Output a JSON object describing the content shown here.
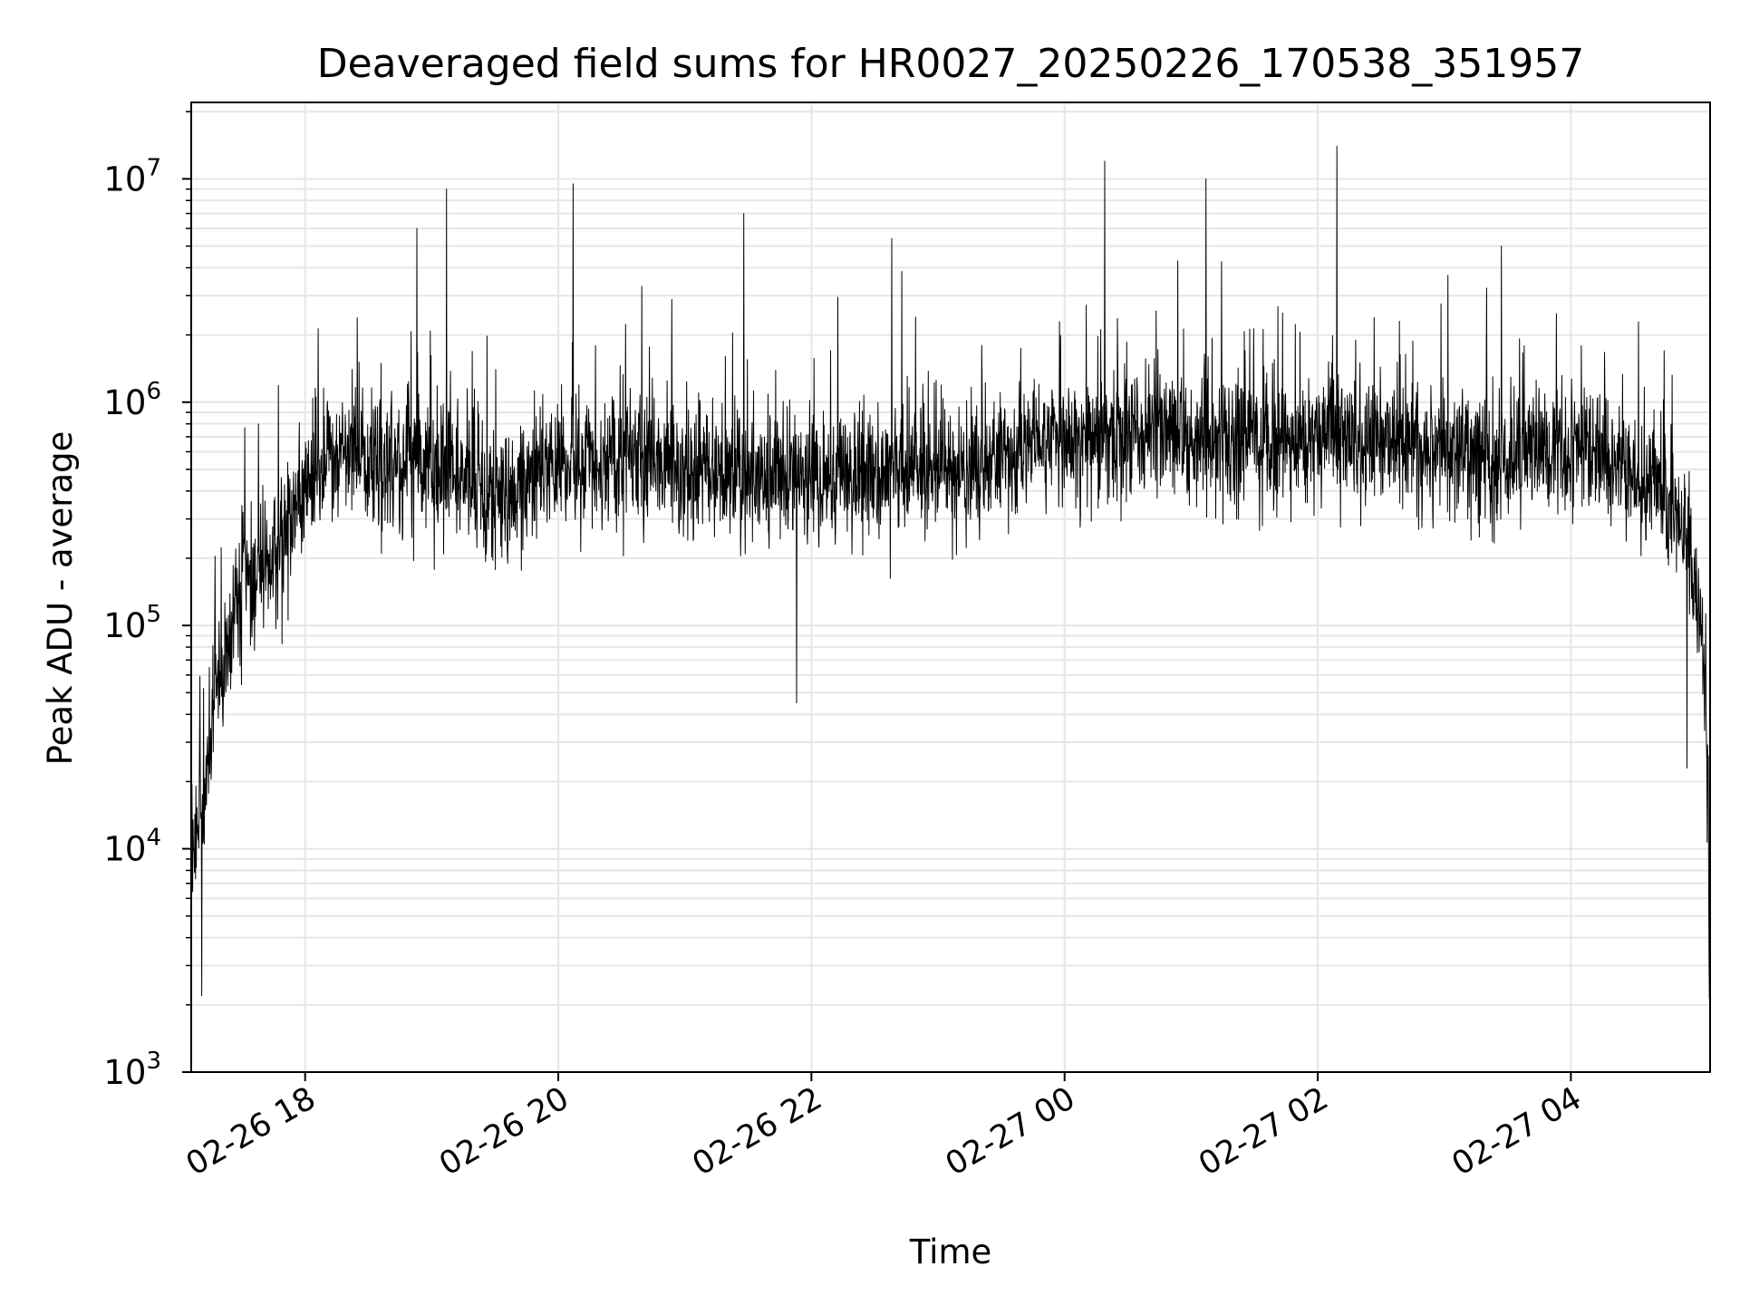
{
  "chart_data": {
    "type": "line",
    "title": "Deaveraged field sums for HR0027_20250226_170538_351957",
    "xlabel": "Time",
    "ylabel": "Peak ADU - average",
    "x_scale": "time",
    "y_scale": "log",
    "xlim": [
      "2025-02-26 17:06",
      "2025-02-27 05:06"
    ],
    "ylim": [
      1000,
      22000000
    ],
    "x_ticks": [
      {
        "value": "2025-02-26 18:00",
        "label": "02-26 18"
      },
      {
        "value": "2025-02-26 20:00",
        "label": "02-26 20"
      },
      {
        "value": "2025-02-26 22:00",
        "label": "02-26 22"
      },
      {
        "value": "2025-02-27 00:00",
        "label": "02-27 00"
      },
      {
        "value": "2025-02-27 02:00",
        "label": "02-27 02"
      },
      {
        "value": "2025-02-27 04:00",
        "label": "02-27 04"
      }
    ],
    "y_ticks": [
      {
        "value": 1000,
        "base": "10",
        "exp": "3"
      },
      {
        "value": 10000,
        "base": "10",
        "exp": "4"
      },
      {
        "value": 100000,
        "base": "10",
        "exp": "5"
      },
      {
        "value": 1000000,
        "base": "10",
        "exp": "6"
      },
      {
        "value": 10000000,
        "base": "10",
        "exp": "7"
      }
    ],
    "grid": true,
    "line_color": "#000000",
    "grid_color": "#e6e6e6",
    "series": [
      {
        "x": [
          "2025-02-26 17:06",
          "2025-02-26 17:12",
          "2025-02-26 17:18",
          "2025-02-26 17:24",
          "2025-02-26 17:30",
          "2025-02-26 17:36",
          "2025-02-26 17:42",
          "2025-02-26 17:48",
          "2025-02-26 17:54",
          "2025-02-26 18:00",
          "2025-02-26 18:15",
          "2025-02-26 18:30",
          "2025-02-26 19:00",
          "2025-02-26 19:30",
          "2025-02-26 20:00",
          "2025-02-26 20:30",
          "2025-02-26 21:00",
          "2025-02-26 21:30",
          "2025-02-26 22:00",
          "2025-02-26 22:30",
          "2025-02-26 23:00",
          "2025-02-26 23:30",
          "2025-02-27 00:00",
          "2025-02-27 00:30",
          "2025-02-27 01:00",
          "2025-02-27 01:30",
          "2025-02-27 02:00",
          "2025-02-27 02:30",
          "2025-02-27 03:00",
          "2025-02-27 03:30",
          "2025-02-27 04:00",
          "2025-02-27 04:20",
          "2025-02-27 04:40",
          "2025-02-27 04:55",
          "2025-02-27 05:02",
          "2025-02-27 05:05",
          "2025-02-27 05:06"
        ],
        "y": [
          10000,
          20000,
          50000,
          90000,
          130000,
          160000,
          200000,
          250000,
          300000,
          420000,
          600000,
          550000,
          500000,
          380000,
          550000,
          560000,
          500000,
          480000,
          450000,
          470000,
          500000,
          550000,
          700000,
          750000,
          700000,
          650000,
          700000,
          650000,
          600000,
          550000,
          600000,
          550000,
          400000,
          250000,
          100000,
          20000,
          1500
        ],
        "peaks": [
          {
            "x": "2025-02-26 18:53",
            "y": 6000000
          },
          {
            "x": "2025-02-26 19:07",
            "y": 9000000
          },
          {
            "x": "2025-02-26 20:07",
            "y": 9500000
          },
          {
            "x": "2025-02-26 21:28",
            "y": 7000000
          },
          {
            "x": "2025-02-26 22:38",
            "y": 5400000
          },
          {
            "x": "2025-02-27 00:19",
            "y": 12000000
          },
          {
            "x": "2025-02-27 01:07",
            "y": 10000000
          },
          {
            "x": "2025-02-27 02:09",
            "y": 14000000
          },
          {
            "x": "2025-02-27 03:27",
            "y": 5000000
          },
          {
            "x": "2025-02-26 17:11",
            "y": 2200
          },
          {
            "x": "2025-02-26 21:53",
            "y": 45000
          },
          {
            "x": "2025-02-27 04:55",
            "y": 23000
          },
          {
            "x": "2025-02-27 05:06",
            "y": 1500
          }
        ]
      }
    ]
  }
}
